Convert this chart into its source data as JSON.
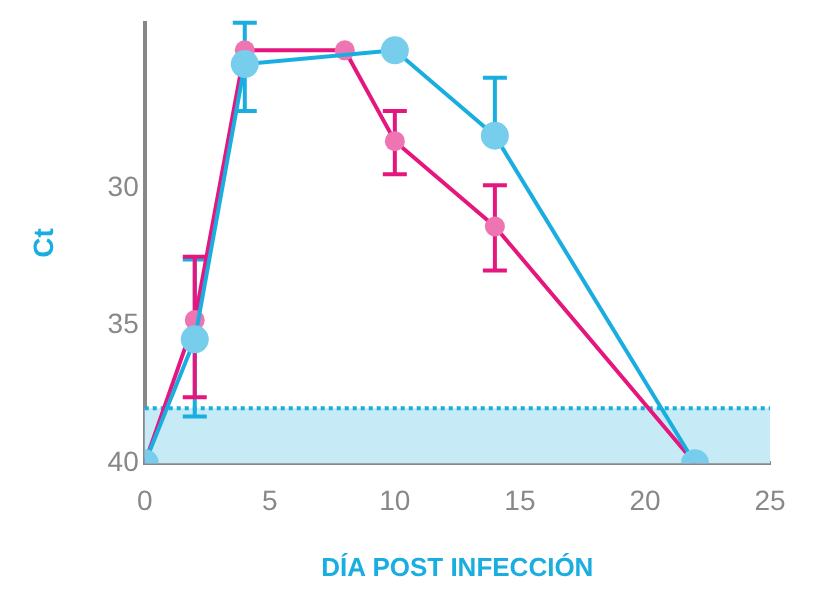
{
  "chart_data": {
    "type": "line",
    "xlabel": "DÍA POST INFECCIÓN",
    "ylabel": "Ct",
    "xlim": [
      0,
      25
    ],
    "xticks": [
      0,
      5,
      10,
      15,
      20,
      25
    ],
    "ylim": [
      40,
      24
    ],
    "yticks": [
      40,
      35,
      30
    ],
    "grid": false,
    "legend": false,
    "marker": "circle",
    "line_style": "solid",
    "series": [
      {
        "color": "#1aaee0",
        "x": [
          0,
          2,
          4,
          10,
          14,
          22
        ],
        "values": [
          40,
          35.5,
          25.5,
          25,
          28.1,
          40
        ],
        "errors": [
          null,
          [
            32.6,
            38.3
          ],
          [
            24,
            27.2
          ],
          null,
          [
            26,
            28.1
          ],
          null
        ]
      },
      {
        "color": "#e5177e",
        "x": [
          0,
          2,
          4,
          8,
          10,
          14,
          22
        ],
        "values": [
          40,
          34.8,
          25,
          25,
          28.3,
          31.4,
          40
        ],
        "errors": [
          null,
          [
            32.5,
            37.6
          ],
          null,
          null,
          [
            27.2,
            29.5
          ],
          [
            29.9,
            33
          ],
          null
        ]
      }
    ],
    "bands": [
      {
        "axis": "y",
        "from": 38,
        "to": 40,
        "color": "#c6ebf6"
      }
    ],
    "ref_lines": [
      {
        "axis": "y",
        "value": 38,
        "color": "#1aaee0",
        "line_style": "dotted"
      }
    ]
  }
}
